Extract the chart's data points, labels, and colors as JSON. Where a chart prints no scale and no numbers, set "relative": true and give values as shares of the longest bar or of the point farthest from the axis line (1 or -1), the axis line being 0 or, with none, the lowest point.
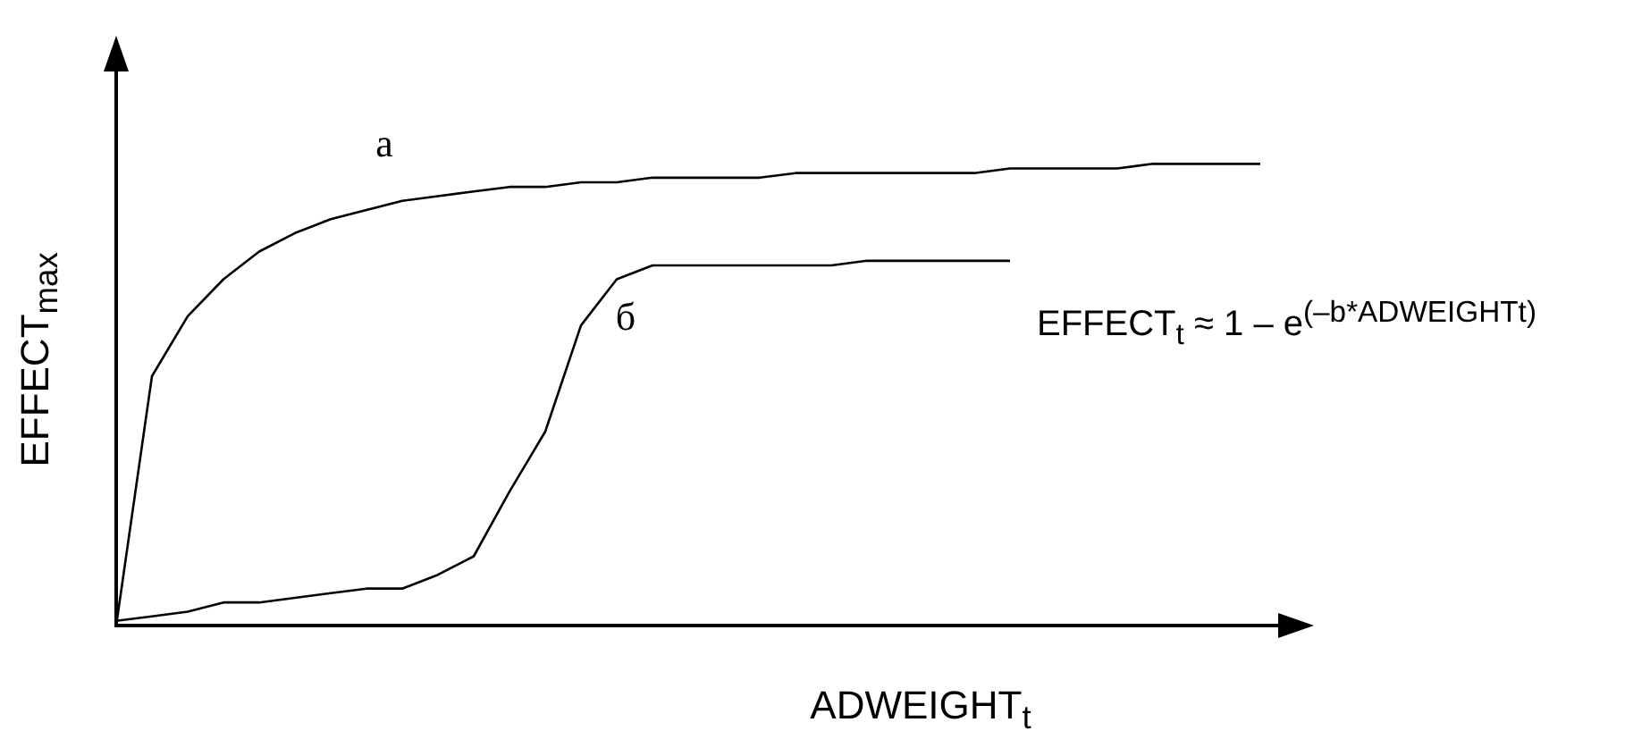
{
  "chart_data": {
    "type": "line",
    "relative": true,
    "xlabel": "ADWEIGHT$_{t}$",
    "ylabel": "EFFECT$_{max}$",
    "annotations": [
      "EFFECT$_{t}$ ≈ 1 – e$^{(–b*ADWEIGHTt)}$"
    ],
    "grid": false,
    "legend": false,
    "marker": "none",
    "line_style": "solid",
    "categories": [
      null,
      null,
      null,
      null,
      null,
      null,
      null,
      null,
      null,
      null,
      null,
      null,
      null,
      null,
      null,
      null,
      null,
      null,
      null,
      null,
      null,
      null,
      null,
      null,
      null,
      null,
      null,
      null,
      null,
      null,
      null,
      null,
      null
    ],
    "series": [
      {
        "name": "а",
        "color": "#000000",
        "values": [
          0,
          0.54,
          0.67,
          0.75,
          0.81,
          0.85,
          0.88,
          0.9,
          0.92,
          0.93,
          0.94,
          0.95,
          0.95,
          0.96,
          0.96,
          0.97,
          0.97,
          0.97,
          0.97,
          0.98,
          0.98,
          0.98,
          0.98,
          0.98,
          0.98,
          0.99,
          0.99,
          0.99,
          0.99,
          1,
          1,
          1,
          1
        ]
      },
      {
        "name": "б",
        "color": "#000000",
        "values": [
          0.01,
          0.02,
          0.03,
          0.05,
          0.05,
          0.06,
          0.07,
          0.08,
          0.08,
          0.11,
          0.15,
          0.29,
          0.42,
          0.65,
          0.75,
          0.78,
          0.78,
          0.78,
          0.78,
          0.78,
          0.78,
          0.79,
          0.79,
          0.79,
          0.79,
          0.79,
          null,
          null,
          null,
          null,
          null,
          null,
          null
        ]
      }
    ]
  }
}
